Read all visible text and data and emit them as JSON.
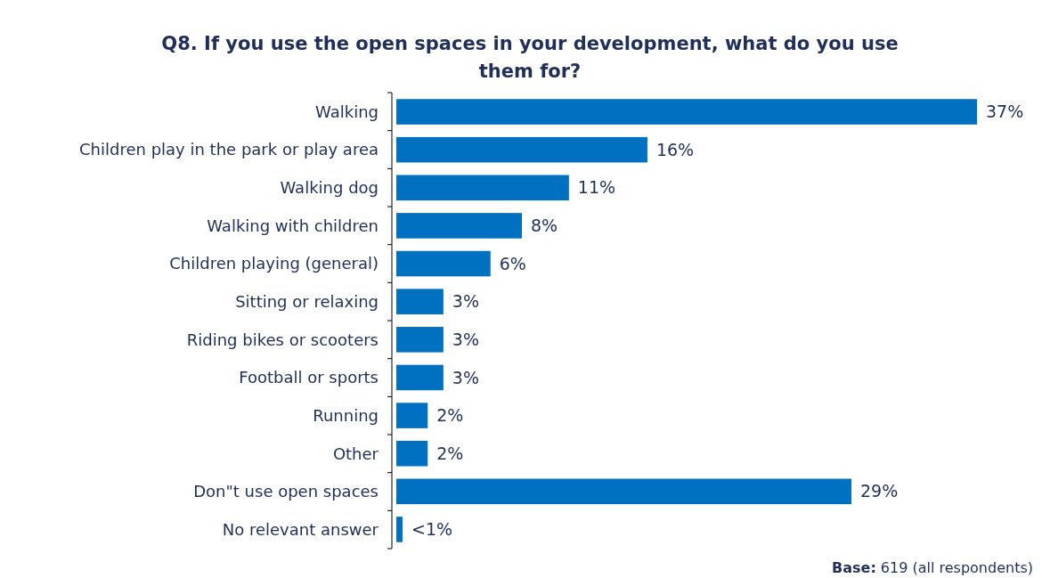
{
  "chart_data": {
    "type": "bar",
    "orientation": "horizontal",
    "title": "Q8. If you use the open spaces in your development, what do you use them for?",
    "categories": [
      "Walking",
      "Children play in the park or play area",
      "Walking dog",
      "Walking with children",
      "Children playing (general)",
      "Sitting or relaxing",
      "Riding bikes or scooters",
      "Football or sports",
      "Running",
      "Other",
      "Don\"t use open spaces",
      "No relevant answer"
    ],
    "values": [
      37,
      16,
      11,
      8,
      6,
      3,
      3,
      3,
      2,
      2,
      29,
      0.4
    ],
    "value_labels": [
      "37%",
      "16%",
      "11%",
      "8%",
      "6%",
      "3%",
      "3%",
      "3%",
      "2%",
      "2%",
      "29%",
      "<1%"
    ],
    "color": "#0070c0",
    "annotations": [
      "Base: 619 (all respondents)"
    ]
  }
}
